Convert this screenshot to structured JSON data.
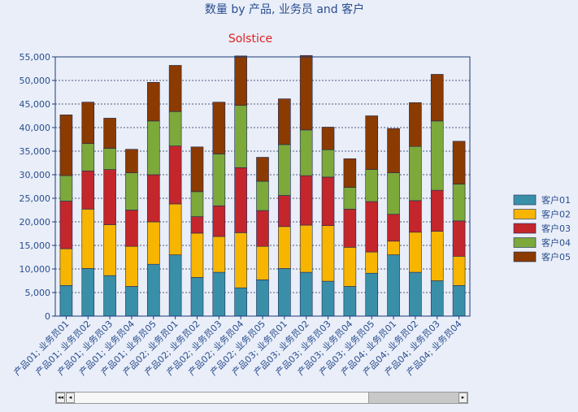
{
  "chart_data": {
    "type": "bar",
    "stacked": true,
    "title": "数量 by 产品, 业务员 and 客户",
    "subtitle": "Solstice",
    "xlabel": "",
    "ylabel": "",
    "ylim": [
      0,
      55000
    ],
    "yticks": [
      "0",
      "5,000",
      "10,000",
      "15,000",
      "20,000",
      "25,000",
      "30,000",
      "35,000",
      "40,000",
      "45,000",
      "50,000",
      "55,000"
    ],
    "yticks_values": [
      0,
      5000,
      10000,
      15000,
      20000,
      25000,
      30000,
      35000,
      40000,
      45000,
      50000,
      55000
    ],
    "grid": true,
    "legend_position": "right",
    "categories": [
      "产品01; 业务员01",
      "产品01; 业务员02",
      "产品01; 业务员03",
      "产品01; 业务员04",
      "产品01; 业务员05",
      "产品02; 业务员01",
      "产品02; 业务员02",
      "产品02; 业务员03",
      "产品02; 业务员04",
      "产品02; 业务员05",
      "产品03; 业务员01",
      "产品03; 业务员02",
      "产品03; 业务员03",
      "产品03; 业务员04",
      "产品03; 业务员05",
      "产品04; 业务员01",
      "产品04; 业务员02",
      "产品04; 业务员03",
      "产品04; 业务员04"
    ],
    "series": [
      {
        "name": "客户01",
        "color": "#3a8fa8",
        "values": [
          6500,
          10100,
          8600,
          6300,
          11000,
          13000,
          8200,
          9300,
          6000,
          7700,
          10100,
          9300,
          7400,
          6300,
          9100,
          13000,
          9300,
          7500,
          6500
        ]
      },
      {
        "name": "客户02",
        "color": "#f7b500",
        "values": [
          7800,
          12600,
          10800,
          8500,
          9000,
          10800,
          9400,
          7600,
          11700,
          7100,
          8900,
          10000,
          11800,
          8300,
          4500,
          2900,
          8500,
          10500,
          6200
        ]
      },
      {
        "name": "客户03",
        "color": "#c3262b",
        "values": [
          10100,
          8100,
          11700,
          7700,
          10000,
          12300,
          3500,
          6500,
          13800,
          7600,
          6600,
          10500,
          10300,
          8100,
          10700,
          5700,
          6700,
          8700,
          7500
        ]
      },
      {
        "name": "客户04",
        "color": "#7da83a",
        "values": [
          5400,
          5800,
          4500,
          7900,
          11400,
          7300,
          5300,
          11000,
          13200,
          6200,
          10800,
          9700,
          5800,
          4600,
          6800,
          8800,
          11500,
          14700,
          7800
        ]
      },
      {
        "name": "客户05",
        "color": "#8b3a00",
        "values": [
          12900,
          8800,
          6400,
          5000,
          8200,
          9800,
          9500,
          11000,
          10500,
          5100,
          9700,
          15800,
          4800,
          6100,
          11400,
          9400,
          9300,
          9900,
          9100
        ]
      }
    ]
  },
  "scrollbar": {
    "first_icon": "double-left-arrow-icon",
    "prev_icon": "left-arrow-icon",
    "next_icon": "right-arrow-icon"
  }
}
